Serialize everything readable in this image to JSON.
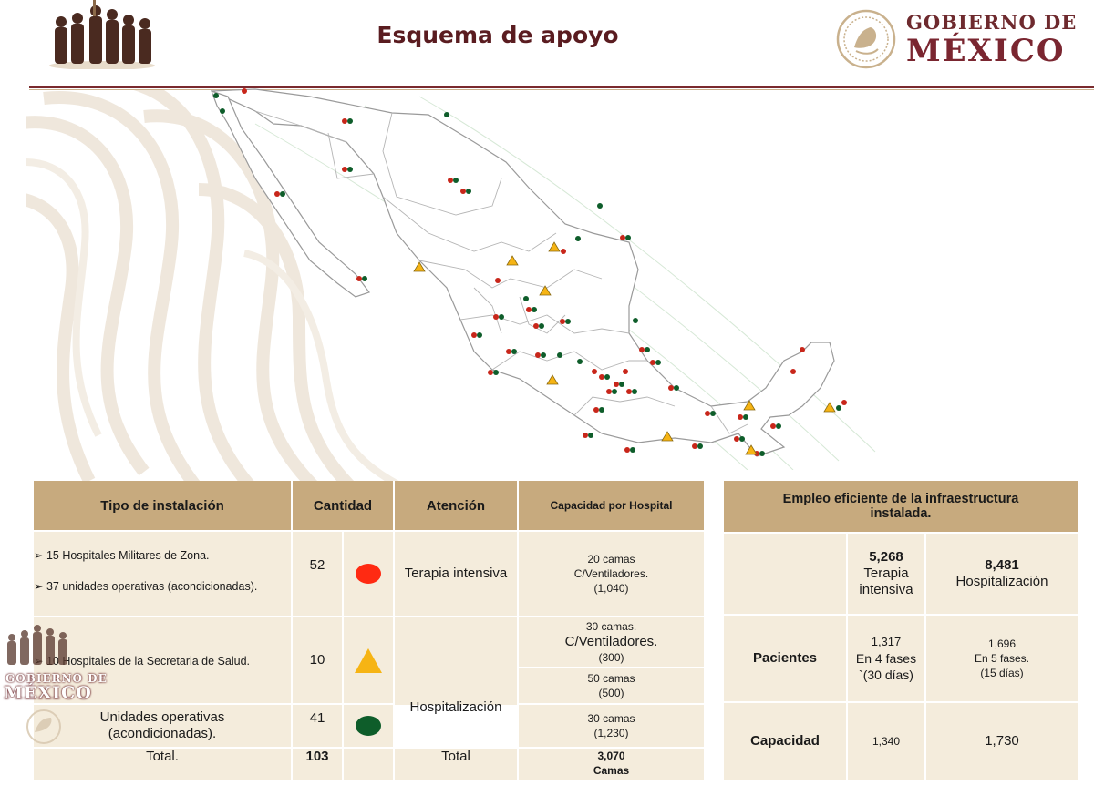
{
  "header": {
    "title": "Esquema de apoyo",
    "gov_line1": "GOBIERNO DE",
    "gov_line2": "MÉXICO"
  },
  "colors": {
    "brand_wine": "#7a2630",
    "header_gold": "#c7aa7e",
    "cell_cream": "#f4ecdc",
    "marker_red": "#ff2a12",
    "marker_yellow": "#f6b414",
    "marker_green": "#0e5d2a"
  },
  "icons": [
    "heroes-logo-icon",
    "mexico-seal-icon",
    "mexico-map-icon",
    "red-circle-icon",
    "yellow-triangle-icon",
    "green-circle-icon"
  ],
  "left_table": {
    "headers": {
      "tipo": "Tipo de instalación",
      "cantidad": "Cantidad",
      "atencion": "Atención",
      "capacidad": "Capacidad por Hospital"
    },
    "row1": {
      "items": [
        "➢ 15 Hospitales Militares de Zona.",
        "➢ 37 unidades operativas (acondicionadas)."
      ],
      "cantidad": "52",
      "atencion": "Terapia intensiva",
      "capacidad_line1": "20 camas",
      "capacidad_line2": "C/Ventiladores.",
      "capacidad_line3": "(1,040)"
    },
    "row2": {
      "tipo": "➢ 10 Hospitales de la Secretaria de Salud.",
      "cantidad": "10",
      "capacidad_a_line1": "30 camas.",
      "capacidad_a_line2": "C/Ventiladores.",
      "capacidad_a_line3": "(300)",
      "capacidad_b_line1": "50 camas",
      "capacidad_b_line2": "(500)"
    },
    "row3": {
      "tipo_line1": "Unidades operativas",
      "tipo_line2": "(acondicionadas).",
      "cantidad": "41",
      "atencion": "Hospitalización",
      "capacidad_line1": "30 camas",
      "capacidad_line2": "(1,230)"
    },
    "total": {
      "label": "Total.",
      "cantidad": "103",
      "atencion": "Total",
      "capacidad_line1": "3,070",
      "capacidad_line2": "Camas"
    }
  },
  "right_table": {
    "header_line1": "Empleo eficiente de la infraestructura",
    "header_line2": "instalada.",
    "col1": {
      "value": "5,268",
      "label_line1": "Terapia",
      "label_line2": "intensiva"
    },
    "col2": {
      "value": "8,481",
      "label": "Hospitalización"
    },
    "pacientes": {
      "label": "Pacientes",
      "c1_line1": "1,317",
      "c1_line2": "En 4 fases",
      "c1_line3": "`(30 días)",
      "c2_line1": "1,696",
      "c2_line2": "En 5 fases.",
      "c2_line3": "(15 días)"
    },
    "capacidad": {
      "label": "Capacidad",
      "c1": "1,340",
      "c2": "1,730"
    }
  },
  "watermark": {
    "line1": "GOBIERNO DE",
    "line2": "MÉXICO"
  }
}
